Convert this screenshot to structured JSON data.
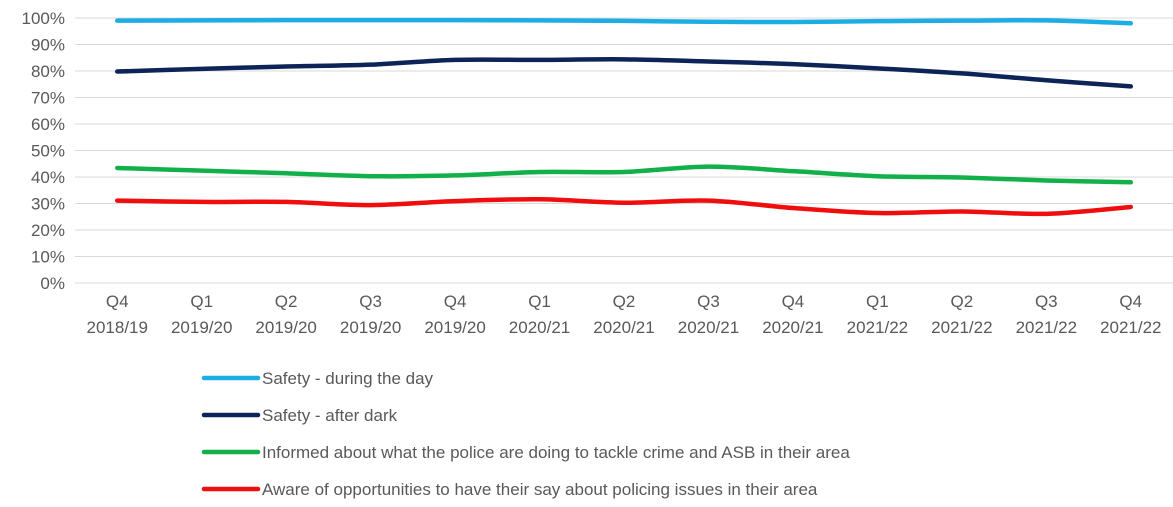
{
  "chart_data": {
    "type": "line",
    "title": "",
    "xlabel": "",
    "ylabel": "",
    "ylim": [
      0,
      100
    ],
    "y_ticks": [
      "0%",
      "10%",
      "20%",
      "30%",
      "40%",
      "50%",
      "60%",
      "70%",
      "80%",
      "90%",
      "100%"
    ],
    "grid": true,
    "legend_position": "bottom",
    "categories": [
      {
        "q": "Q4",
        "y": "2018/19"
      },
      {
        "q": "Q1",
        "y": "2019/20"
      },
      {
        "q": "Q2",
        "y": "2019/20"
      },
      {
        "q": "Q3",
        "y": "2019/20"
      },
      {
        "q": "Q4",
        "y": "2019/20"
      },
      {
        "q": "Q1",
        "y": "2020/21"
      },
      {
        "q": "Q2",
        "y": "2020/21"
      },
      {
        "q": "Q3",
        "y": "2020/21"
      },
      {
        "q": "Q4",
        "y": "2020/21"
      },
      {
        "q": "Q1",
        "y": "2021/22"
      },
      {
        "q": "Q2",
        "y": "2021/22"
      },
      {
        "q": "Q3",
        "y": "2021/22"
      },
      {
        "q": "Q4",
        "y": "2021/22"
      }
    ],
    "series": [
      {
        "name": "Safety - during the day",
        "color": "#1CADE4",
        "values": [
          99.0,
          99.1,
          99.2,
          99.2,
          99.2,
          99.1,
          98.9,
          98.6,
          98.5,
          98.8,
          99.0,
          99.1,
          98.0
        ]
      },
      {
        "name": "Safety - after dark",
        "color": "#0C2457",
        "values": [
          79.8,
          80.8,
          81.7,
          82.4,
          84.2,
          84.2,
          84.4,
          83.6,
          82.6,
          81.0,
          79.1,
          76.5,
          74.2
        ]
      },
      {
        "name": "Informed about what the police are doing to tackle crime and ASB in their area",
        "color": "#12B04A",
        "values": [
          43.4,
          42.4,
          41.4,
          40.3,
          40.6,
          41.9,
          41.9,
          43.9,
          42.2,
          40.3,
          39.8,
          38.7,
          38.0
        ]
      },
      {
        "name": "Aware of opportunities to have their say about policing issues in their area",
        "color": "#F00D0D",
        "values": [
          31.1,
          30.6,
          30.6,
          29.4,
          30.9,
          31.6,
          30.3,
          31.1,
          28.3,
          26.4,
          27.0,
          26.1,
          28.7
        ]
      }
    ]
  }
}
